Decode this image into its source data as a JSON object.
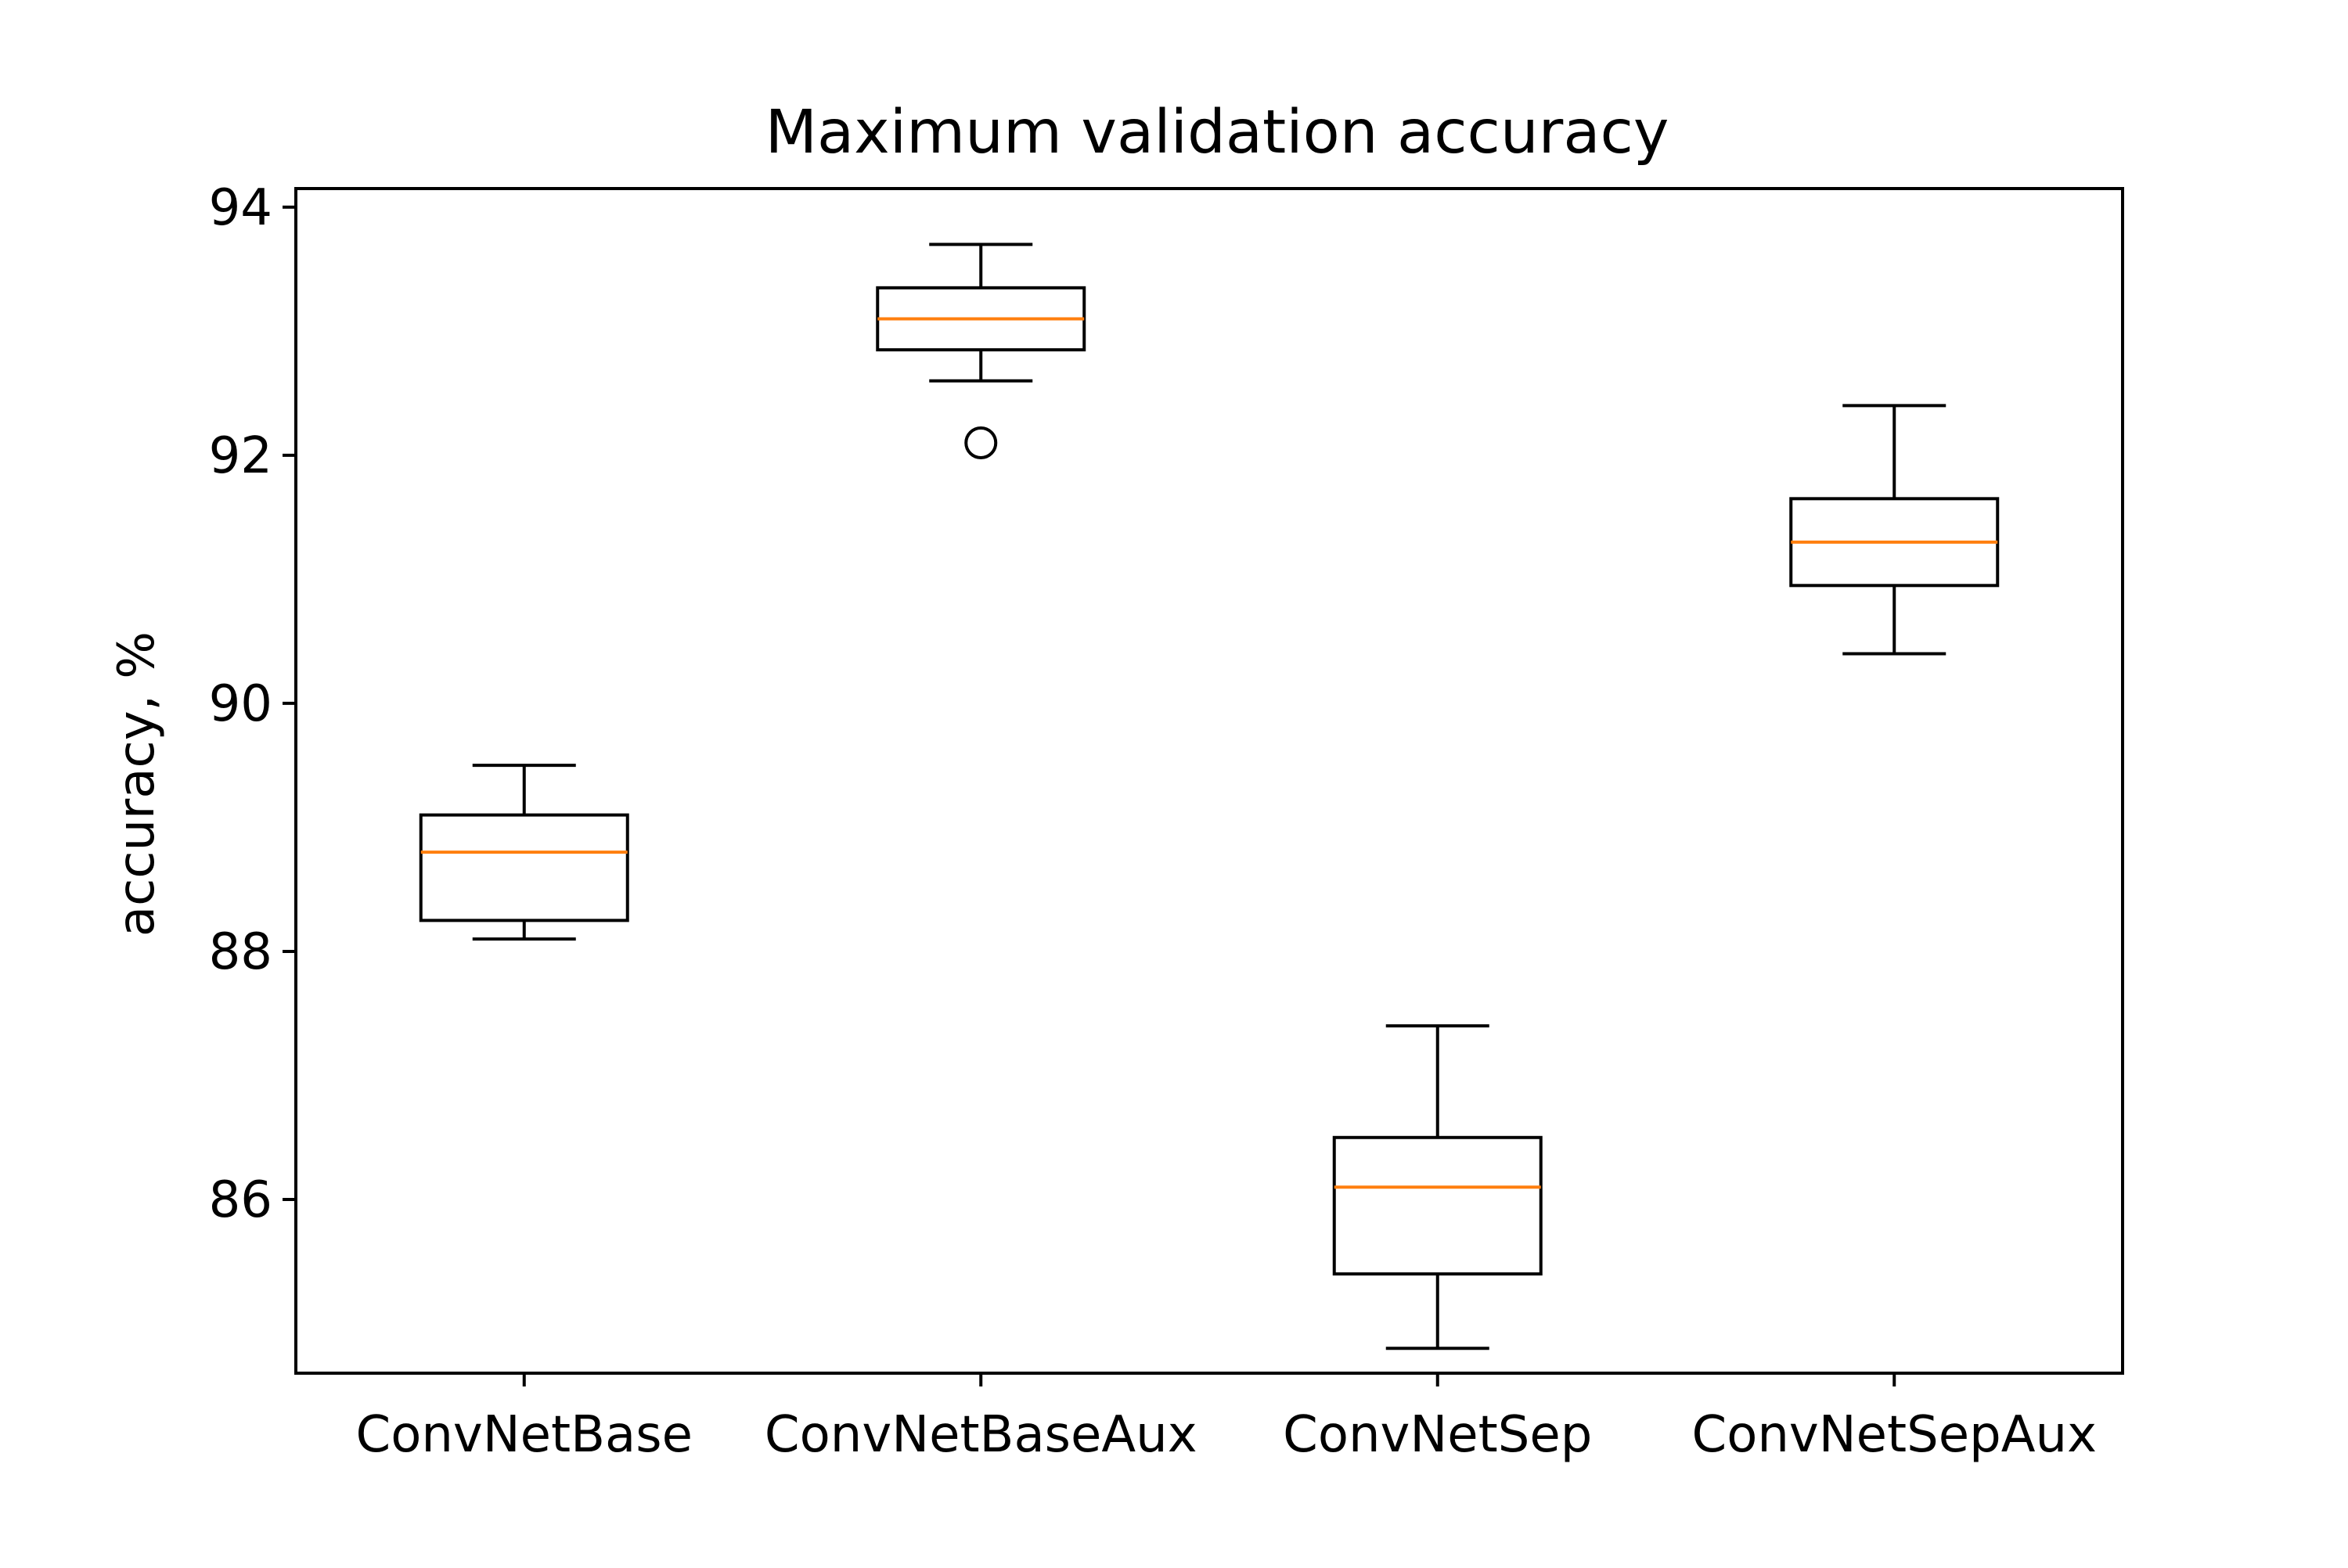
{
  "chart_data": {
    "type": "box",
    "title": "Maximum validation accuracy",
    "xlabel": "",
    "ylabel": "accuracy, %",
    "categories": [
      "ConvNetBase",
      "ConvNetBaseAux",
      "ConvNetSep",
      "ConvNetSepAux"
    ],
    "ylim": [
      84.6,
      94.15
    ],
    "yticks": [
      86,
      88,
      90,
      92,
      94
    ],
    "grid": false,
    "legend": "none",
    "colors": {
      "box": "#000000",
      "median": "#ff7f0e",
      "outlier": "#000000",
      "axes": "#000000"
    },
    "boxes": [
      {
        "category": "ConvNetBase",
        "whisker_low": 88.1,
        "q1": 88.25,
        "median": 88.8,
        "q3": 89.1,
        "whisker_high": 89.5,
        "outliers": []
      },
      {
        "category": "ConvNetBaseAux",
        "whisker_low": 92.6,
        "q1": 92.85,
        "median": 93.1,
        "q3": 93.35,
        "whisker_high": 93.7,
        "outliers": [
          92.1
        ]
      },
      {
        "category": "ConvNetSep",
        "whisker_low": 84.8,
        "q1": 85.4,
        "median": 86.1,
        "q3": 86.5,
        "whisker_high": 87.4,
        "outliers": []
      },
      {
        "category": "ConvNetSepAux",
        "whisker_low": 90.4,
        "q1": 90.95,
        "median": 91.3,
        "q3": 91.65,
        "whisker_high": 92.4,
        "outliers": []
      }
    ]
  }
}
